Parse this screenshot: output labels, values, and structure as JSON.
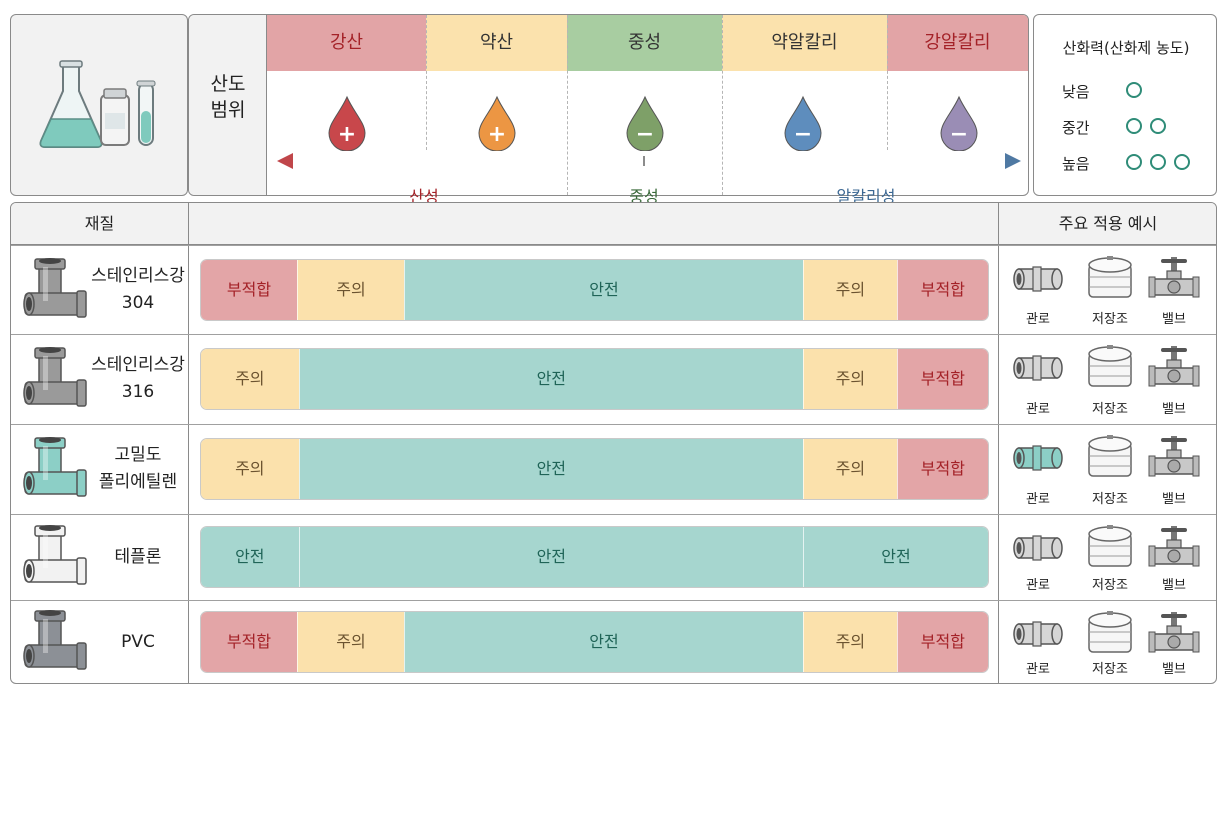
{
  "header": {
    "range_label": "산도\n범위",
    "levels": [
      {
        "label": "강산",
        "sign": "+",
        "head_bg": "#e2a4a6",
        "head_color": "#a42228",
        "drop_color": "#c8474b"
      },
      {
        "label": "약산",
        "sign": "+",
        "head_bg": "#fbe2ad",
        "head_color": "#333333",
        "drop_color": "#ec9643"
      },
      {
        "label": "중성",
        "sign": "−",
        "head_bg": "#a8cda1",
        "head_color": "#333333",
        "drop_color": "#7ea068"
      },
      {
        "label": "약알칼리",
        "sign": "−",
        "head_bg": "#fbe2ad",
        "head_color": "#333333",
        "drop_color": "#5e8dbd"
      },
      {
        "label": "강알칼리",
        "sign": "−",
        "head_bg": "#e2a4a6",
        "head_color": "#a42228",
        "drop_color": "#9a8db5"
      }
    ],
    "scale": {
      "acid": "산성",
      "neutral": "중성",
      "alkaline": "알칼리성"
    }
  },
  "oxidation": {
    "title": "산화력(산화제 농도)",
    "rows": [
      {
        "label": "낮음",
        "circles": 1
      },
      {
        "label": "중간",
        "circles": 2
      },
      {
        "label": "높음",
        "circles": 3
      }
    ]
  },
  "table": {
    "col_material": "재질",
    "col_apps": "주요 적용 예시",
    "app_labels": [
      "관로",
      "저장조",
      "밸브"
    ],
    "rows": [
      {
        "name": "스테인리스강\n304",
        "pipe_color": "#9a9a9a",
        "segments": [
          {
            "label": "부적합",
            "kind": "bad",
            "frac": 0.122
          },
          {
            "label": "주의",
            "kind": "warn",
            "frac": 0.136
          },
          {
            "label": "안전",
            "kind": "safe",
            "frac": 0.507
          },
          {
            "label": "주의",
            "kind": "warn",
            "frac": 0.119
          },
          {
            "label": "부적합",
            "kind": "bad",
            "frac": 0.116
          }
        ]
      },
      {
        "name": "스테인리스강\n316",
        "pipe_color": "#9a9a9a",
        "segments": [
          {
            "label": "주의",
            "kind": "warn",
            "frac": 0.124
          },
          {
            "label": "안전",
            "kind": "safe",
            "frac": 0.641
          },
          {
            "label": "주의",
            "kind": "warn",
            "frac": 0.119
          },
          {
            "label": "부적합",
            "kind": "bad",
            "frac": 0.116
          }
        ]
      },
      {
        "name": "고밀도\n폴리에틸렌",
        "pipe_color": "#8ccfc6",
        "segments": [
          {
            "label": "주의",
            "kind": "warn",
            "frac": 0.124
          },
          {
            "label": "안전",
            "kind": "safe",
            "frac": 0.641
          },
          {
            "label": "주의",
            "kind": "warn",
            "frac": 0.119
          },
          {
            "label": "부적합",
            "kind": "bad",
            "frac": 0.116
          }
        ]
      },
      {
        "name": "테플론",
        "pipe_color": "#f2f2f2",
        "segments": [
          {
            "label": "안전",
            "kind": "safe",
            "frac": 0.124
          },
          {
            "label": "안전",
            "kind": "safe",
            "frac": 0.641
          },
          {
            "label": "안전",
            "kind": "safe",
            "frac": 0.235
          }
        ]
      },
      {
        "name": "PVC",
        "pipe_color": "#8c9096",
        "segments": [
          {
            "label": "부적합",
            "kind": "bad",
            "frac": 0.122
          },
          {
            "label": "주의",
            "kind": "warn",
            "frac": 0.136
          },
          {
            "label": "안전",
            "kind": "safe",
            "frac": 0.507
          },
          {
            "label": "주의",
            "kind": "warn",
            "frac": 0.119
          },
          {
            "label": "부적합",
            "kind": "bad",
            "frac": 0.116
          }
        ]
      }
    ]
  }
}
